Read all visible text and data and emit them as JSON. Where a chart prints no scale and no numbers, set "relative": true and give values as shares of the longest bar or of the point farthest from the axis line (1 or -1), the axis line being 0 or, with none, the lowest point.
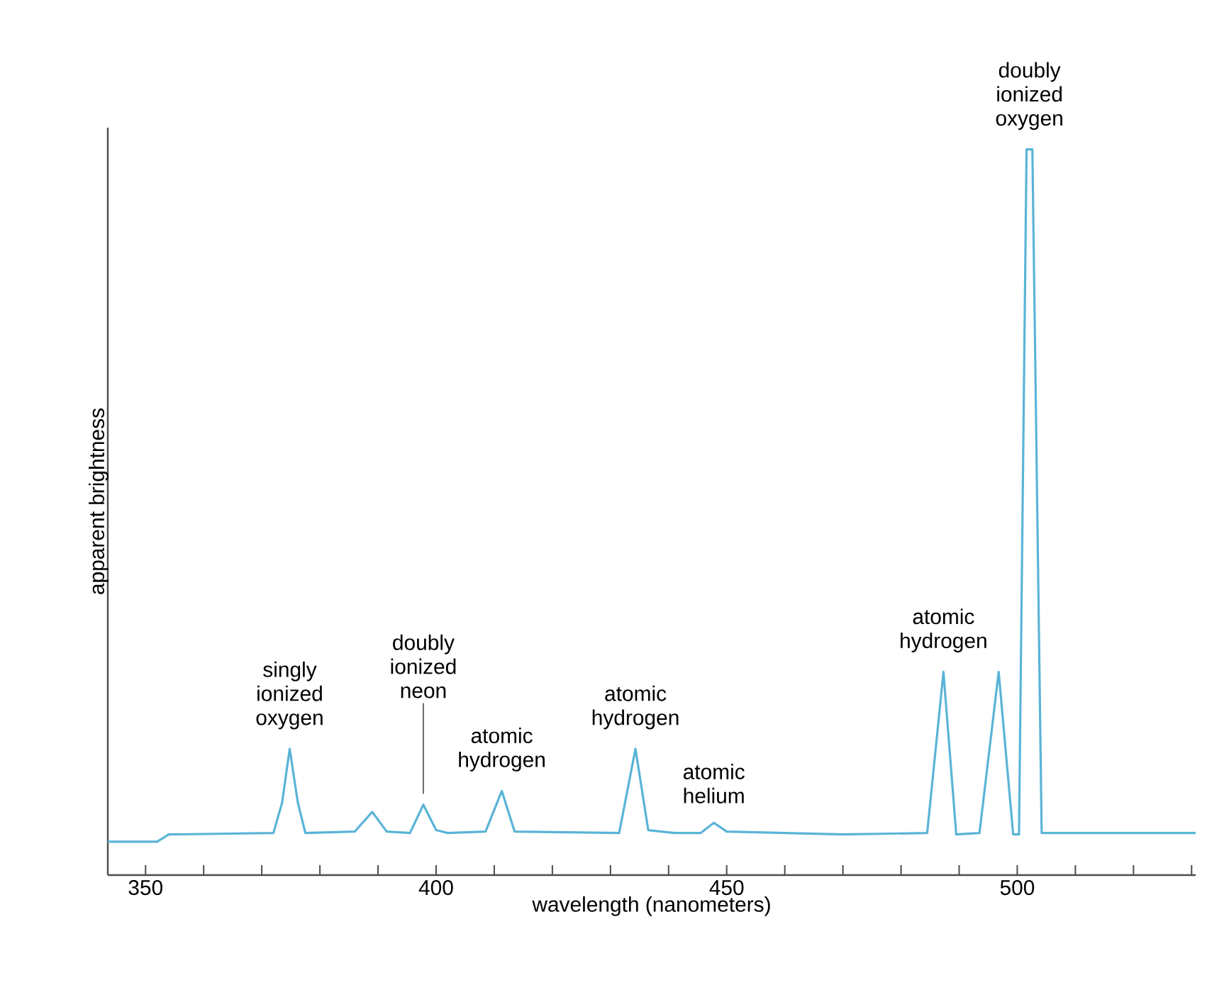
{
  "chart_data": {
    "type": "line",
    "relative": true,
    "xlabel": "wavelength (nanometers)",
    "ylabel": "apparent brightness",
    "x": [
      343.5,
      352,
      354,
      372,
      373.5,
      374.8,
      376.2,
      377.5,
      386,
      389,
      391.5,
      395.5,
      397.8,
      400,
      402,
      408.5,
      411.3,
      413.5,
      431.5,
      434.3,
      436.5,
      441,
      445.5,
      447.8,
      450,
      470,
      484.5,
      487.3,
      489.5,
      493.5,
      496.8,
      499.3,
      500.3,
      501.6,
      502.6,
      504.2,
      530.7
    ],
    "series": [
      {
        "color": "#5ab4d6",
        "values": [
          0.046,
          0.046,
          0.056,
          0.058,
          0.1,
          0.174,
          0.1,
          0.058,
          0.06,
          0.087,
          0.06,
          0.058,
          0.097,
          0.062,
          0.058,
          0.06,
          0.116,
          0.06,
          0.058,
          0.174,
          0.062,
          0.058,
          0.058,
          0.072,
          0.06,
          0.056,
          0.058,
          0.28,
          0.056,
          0.058,
          0.28,
          0.056,
          0.056,
          1.0,
          1.0,
          0.058,
          0.058
        ]
      }
    ],
    "xlim": [
      343.5,
      530.7
    ],
    "xticks": [
      350,
      {
        "value": 360,
        "label": null
      },
      {
        "value": 370,
        "label": null
      },
      {
        "value": 380,
        "label": null
      },
      {
        "value": 390,
        "label": null
      },
      400,
      {
        "value": 410,
        "label": null
      },
      {
        "value": 420,
        "label": null
      },
      {
        "value": 430,
        "label": null
      },
      {
        "value": 440,
        "label": null
      },
      450,
      {
        "value": 460,
        "label": null
      },
      {
        "value": 470,
        "label": null
      },
      {
        "value": 480,
        "label": null
      },
      {
        "value": 490,
        "label": null
      },
      500,
      {
        "value": 510,
        "label": null
      },
      {
        "value": 520,
        "label": null
      },
      {
        "value": 530,
        "label": null
      }
    ],
    "grid": false,
    "marker": "none",
    "line_style": "solid",
    "annotations": [
      {
        "text": "singly ionized oxygen",
        "x": 374.8,
        "y": 0.174
      },
      {
        "text": "doubly ionized neon",
        "x": 397.8,
        "y": 0.097
      },
      {
        "text": "atomic hydrogen",
        "x": 411.3,
        "y": 0.116
      },
      {
        "text": "atomic hydrogen",
        "x": 434.3,
        "y": 0.174
      },
      {
        "text": "atomic helium",
        "x": 447.8,
        "y": 0.072
      },
      {
        "text": "atomic hydrogen",
        "x": 487.3,
        "y": 0.28
      },
      {
        "text": "doubly ionized oxygen",
        "x": 502.1,
        "y": 1.0
      }
    ]
  }
}
